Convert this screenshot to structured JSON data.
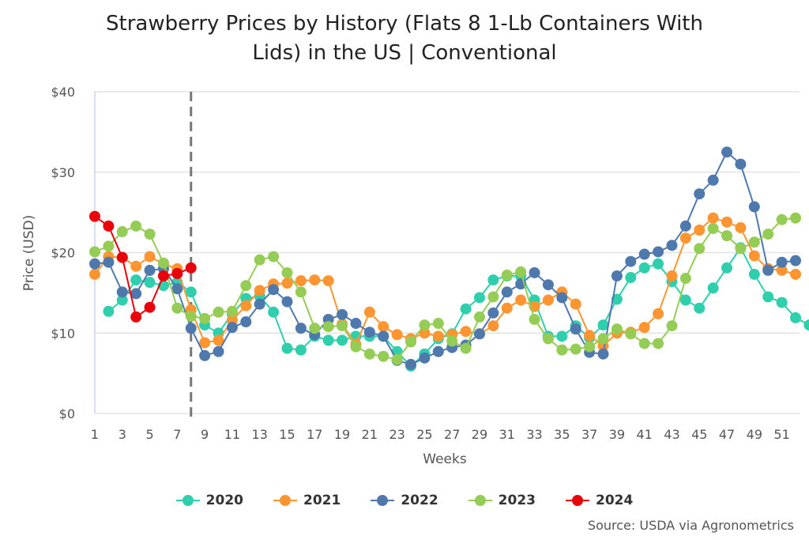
{
  "chart_data": {
    "type": "line",
    "title": "Strawberry Prices by History (Flats 8 1-Lb Containers With Lids) in the US | Conventional",
    "title_lines": [
      "Strawberry Prices by History (Flats 8 1-Lb Containers With",
      "Lids) in the US | Conventional"
    ],
    "xlabel": "Weeks",
    "ylabel": "Price (USD)",
    "xlim": [
      1,
      52
    ],
    "ylim": [
      0,
      40
    ],
    "x_ticks": [
      "1",
      "3",
      "5",
      "7",
      "9",
      "11",
      "13",
      "15",
      "17",
      "19",
      "21",
      "23",
      "25",
      "27",
      "29",
      "31",
      "33",
      "35",
      "37",
      "39",
      "41",
      "43",
      "45",
      "47",
      "49",
      "51"
    ],
    "y_ticks": [
      "$0",
      "$10",
      "$20",
      "$30",
      "$40"
    ],
    "grid": true,
    "legend_position": "bottom",
    "current_week_marker": 8,
    "source": "Source: USDA via Agronometrics",
    "series": [
      {
        "name": "2020",
        "color": "#2fcfae",
        "values": [
          null,
          12.7,
          14.1,
          16.6,
          16.3,
          15.9,
          16.3,
          15.1,
          11.0,
          10.0,
          12.4,
          14.3,
          14.6,
          12.6,
          8.1,
          7.9,
          9.6,
          9.1,
          9.1,
          9.6,
          9.6,
          9.6,
          7.7,
          5.9,
          7.4,
          9.3,
          9.9,
          13.0,
          14.4,
          16.6,
          17.1,
          17.1,
          14.1,
          9.6,
          9.6,
          10.9,
          9.4,
          11.0,
          14.2,
          16.9,
          18.1,
          18.6,
          16.4,
          14.1,
          13.1,
          15.6,
          18.1,
          20.6,
          17.3,
          14.5,
          13.8,
          11.9,
          11.0
        ]
      },
      {
        "name": "2021",
        "color": "#ff9530",
        "values": [
          17.3,
          19.5,
          19.4,
          18.3,
          19.5,
          18.6,
          18.0,
          12.9,
          8.8,
          9.1,
          11.6,
          13.4,
          15.3,
          16.1,
          16.2,
          16.5,
          16.6,
          16.5,
          11.1,
          8.6,
          12.6,
          10.8,
          9.8,
          9.3,
          10.0,
          9.6,
          9.8,
          10.2,
          9.9,
          10.9,
          13.1,
          14.1,
          13.3,
          14.1,
          15.1,
          13.6,
          9.7,
          8.4,
          10.0,
          10.1,
          10.7,
          12.4,
          17.1,
          21.8,
          22.8,
          24.3,
          23.8,
          23.1,
          19.6,
          18.0,
          17.8,
          17.3
        ]
      },
      {
        "name": "2022",
        "color": "#4f79ad",
        "values": [
          18.6,
          18.8,
          15.1,
          14.9,
          17.8,
          18.0,
          15.5,
          10.6,
          7.2,
          7.7,
          10.7,
          11.4,
          13.6,
          15.4,
          13.9,
          10.6,
          9.8,
          11.7,
          12.3,
          11.2,
          10.1,
          9.6,
          6.6,
          6.1,
          6.9,
          7.7,
          8.2,
          8.5,
          9.9,
          12.5,
          15.1,
          16.1,
          17.5,
          16.0,
          14.4,
          10.5,
          7.6,
          7.4,
          17.1,
          18.9,
          19.8,
          20.1,
          20.9,
          23.3,
          27.3,
          29.0,
          32.5,
          31.0,
          25.7,
          17.8,
          18.8,
          19.0
        ]
      },
      {
        "name": "2023",
        "color": "#95cc55",
        "values": [
          20.1,
          20.8,
          22.6,
          23.3,
          22.3,
          18.7,
          13.1,
          12.1,
          11.8,
          12.6,
          12.7,
          15.9,
          19.1,
          19.5,
          17.5,
          15.1,
          10.6,
          10.8,
          10.9,
          8.3,
          7.4,
          7.1,
          6.7,
          8.9,
          11.0,
          11.2,
          9.0,
          8.1,
          12.0,
          14.5,
          17.2,
          17.6,
          11.7,
          9.3,
          7.9,
          8.0,
          8.3,
          9.3,
          10.5,
          9.9,
          8.7,
          8.7,
          10.9,
          16.8,
          20.5,
          23.0,
          22.1,
          20.5,
          21.3,
          22.3,
          24.1,
          24.3
        ]
      },
      {
        "name": "2024",
        "color": "#e8000b",
        "values": [
          24.5,
          23.3,
          19.4,
          12.0,
          13.2,
          17.1,
          17.4,
          18.1
        ]
      }
    ]
  }
}
